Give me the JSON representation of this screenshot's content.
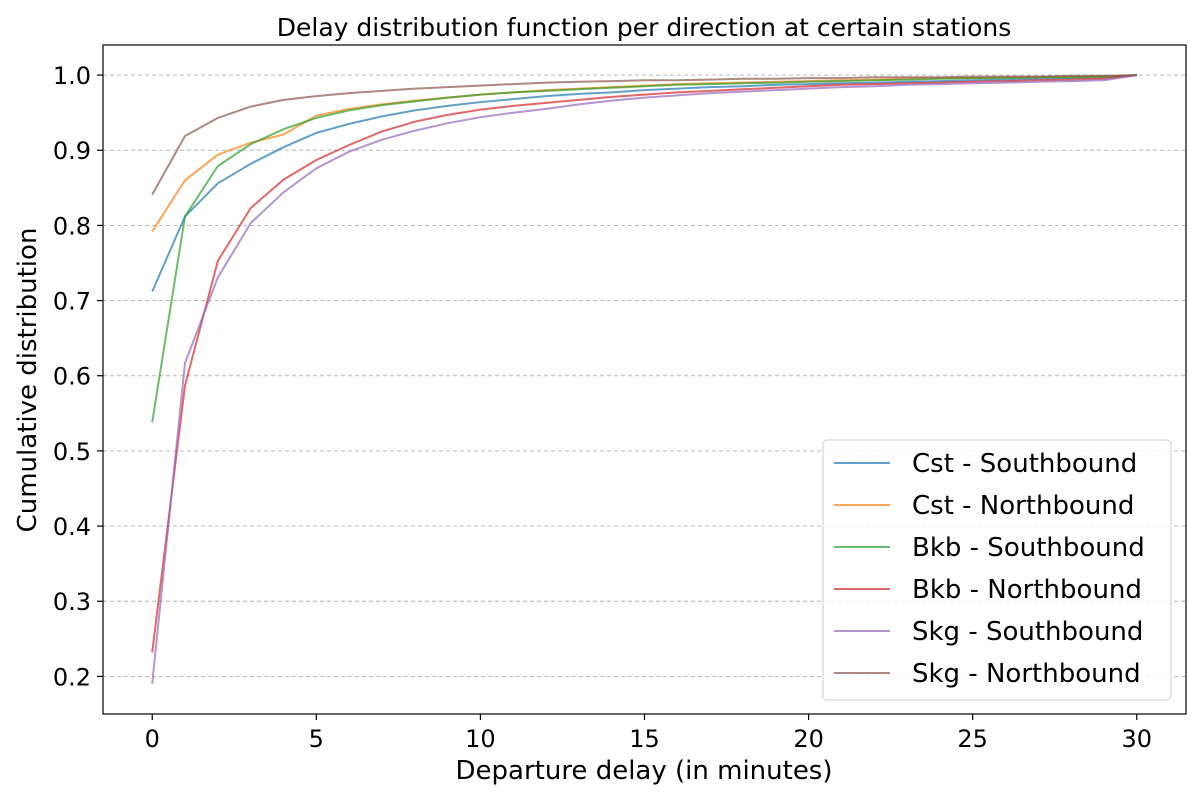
{
  "chart_data": {
    "type": "line",
    "title": "Delay distribution function per direction at certain stations",
    "xlabel": "Departure delay (in minutes)",
    "ylabel": "Cumulative distribution",
    "xlim": [
      -1.5,
      31.5
    ],
    "ylim": [
      0.15,
      1.04
    ],
    "xticks": [
      0,
      5,
      10,
      15,
      20,
      25,
      30
    ],
    "yticks": [
      0.2,
      0.3,
      0.4,
      0.5,
      0.6,
      0.7,
      0.8,
      0.9,
      1.0
    ],
    "xtick_labels": [
      "0",
      "5",
      "10",
      "15",
      "20",
      "25",
      "30"
    ],
    "ytick_labels": [
      "0.2",
      "0.3",
      "0.4",
      "0.5",
      "0.6",
      "0.7",
      "0.8",
      "0.9",
      "1.0"
    ],
    "grid": "horizontal dashed",
    "legend_position": "lower right",
    "x": [
      0,
      1,
      2,
      3,
      4,
      5,
      6,
      7,
      8,
      9,
      10,
      11,
      12,
      13,
      14,
      15,
      16,
      17,
      18,
      19,
      20,
      21,
      22,
      23,
      24,
      25,
      26,
      27,
      28,
      29,
      30
    ],
    "series": [
      {
        "name": "Cst - Southbound",
        "color": "#1f77b4",
        "values": [
          0.712,
          0.812,
          0.856,
          0.882,
          0.904,
          0.923,
          0.935,
          0.945,
          0.953,
          0.959,
          0.964,
          0.968,
          0.972,
          0.975,
          0.977,
          0.98,
          0.982,
          0.984,
          0.985,
          0.987,
          0.988,
          0.989,
          0.99,
          0.991,
          0.992,
          0.993,
          0.994,
          0.995,
          0.996,
          0.997,
          1.0
        ]
      },
      {
        "name": "Cst - Northbound",
        "color": "#ff7f0e",
        "values": [
          0.792,
          0.86,
          0.894,
          0.91,
          0.921,
          0.946,
          0.955,
          0.961,
          0.966,
          0.97,
          0.974,
          0.977,
          0.98,
          0.982,
          0.984,
          0.986,
          0.988,
          0.989,
          0.99,
          0.991,
          0.992,
          0.993,
          0.994,
          0.995,
          0.996,
          0.996,
          0.997,
          0.997,
          0.998,
          0.998,
          1.0
        ]
      },
      {
        "name": "Bkb - Southbound",
        "color": "#2ca02c",
        "values": [
          0.538,
          0.812,
          0.879,
          0.908,
          0.928,
          0.943,
          0.953,
          0.96,
          0.965,
          0.97,
          0.974,
          0.977,
          0.979,
          0.981,
          0.983,
          0.985,
          0.987,
          0.988,
          0.989,
          0.99,
          0.991,
          0.992,
          0.993,
          0.994,
          0.995,
          0.996,
          0.996,
          0.997,
          0.997,
          0.998,
          1.0
        ]
      },
      {
        "name": "Bkb - Northbound",
        "color": "#d62728",
        "values": [
          0.232,
          0.587,
          0.753,
          0.823,
          0.861,
          0.887,
          0.907,
          0.925,
          0.938,
          0.947,
          0.954,
          0.959,
          0.963,
          0.967,
          0.971,
          0.974,
          0.977,
          0.979,
          0.981,
          0.983,
          0.985,
          0.987,
          0.988,
          0.989,
          0.99,
          0.991,
          0.992,
          0.993,
          0.994,
          0.995,
          1.0
        ]
      },
      {
        "name": "Skg - Southbound",
        "color": "#9467bd",
        "values": [
          0.19,
          0.617,
          0.731,
          0.803,
          0.844,
          0.876,
          0.898,
          0.914,
          0.926,
          0.936,
          0.944,
          0.95,
          0.955,
          0.961,
          0.966,
          0.97,
          0.973,
          0.976,
          0.978,
          0.98,
          0.982,
          0.984,
          0.985,
          0.987,
          0.988,
          0.989,
          0.99,
          0.991,
          0.992,
          0.993,
          1.0
        ]
      },
      {
        "name": "Skg - Northbound",
        "color": "#8c564b",
        "values": [
          0.841,
          0.919,
          0.943,
          0.958,
          0.967,
          0.972,
          0.976,
          0.979,
          0.982,
          0.984,
          0.986,
          0.988,
          0.99,
          0.991,
          0.992,
          0.993,
          0.993,
          0.994,
          0.995,
          0.995,
          0.996,
          0.996,
          0.997,
          0.997,
          0.997,
          0.998,
          0.998,
          0.998,
          0.999,
          0.999,
          1.0
        ]
      }
    ]
  }
}
